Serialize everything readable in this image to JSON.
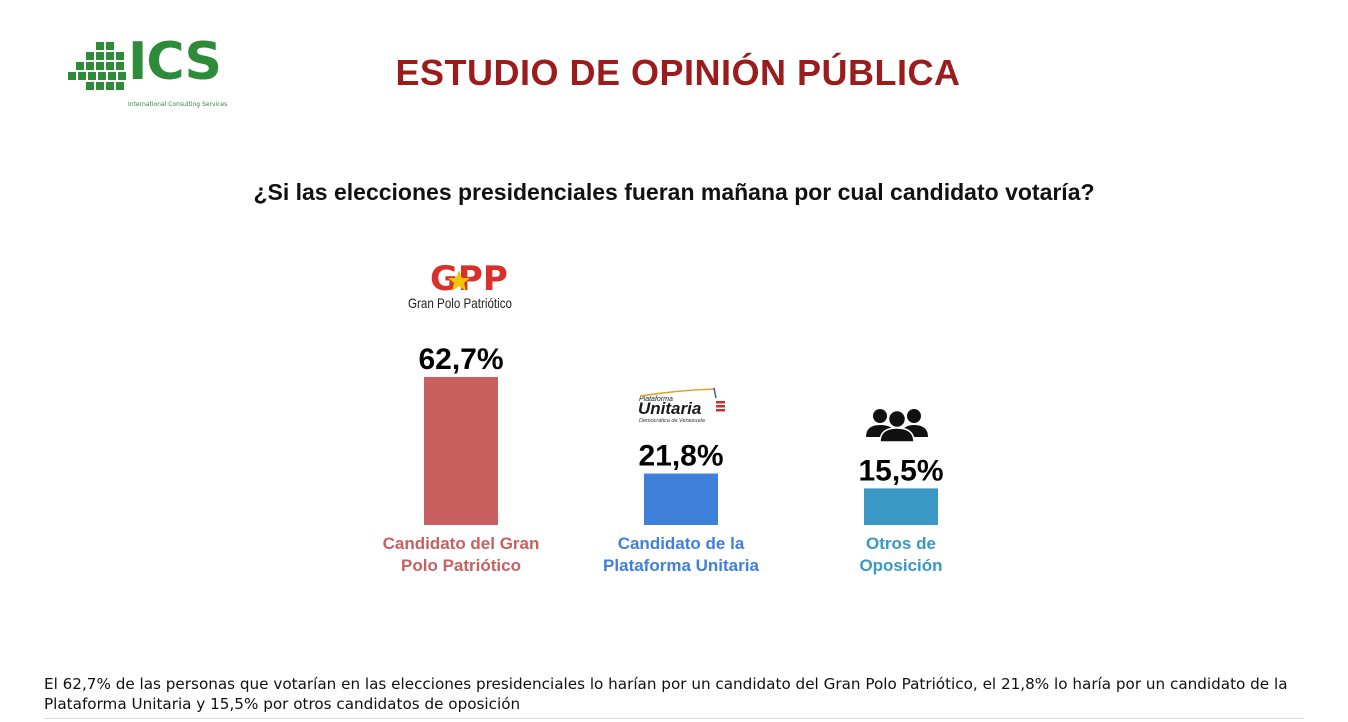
{
  "header": {
    "logo_text": "ICS",
    "logo_subtitle": "International Consulting Services",
    "title": "ESTUDIO DE OPINIÓN PÚBLICA"
  },
  "question": "¿Si las elecciones presidenciales fueran mañana por cual candidato votaría?",
  "party_logos": {
    "gpp": {
      "mark": "GPP",
      "name": "Gran Polo Patriótico"
    },
    "unitaria": {
      "top": "Plataforma",
      "main": "Unitaria",
      "bottom": "Democrática de Venezuela"
    }
  },
  "chart_data": {
    "type": "bar",
    "categories": [
      "Candidato del Gran Polo  Patriótico",
      "Candidato de la Plataforma  Unitaria",
      "Otros de Oposición"
    ],
    "category_lines": [
      [
        "Candidato del Gran",
        "Polo  Patriótico"
      ],
      [
        "Candidato de la",
        "Plataforma  Unitaria"
      ],
      [
        "Otros de",
        "Oposición"
      ]
    ],
    "values": [
      62.7,
      21.8,
      15.5
    ],
    "value_labels": [
      "62,7%",
      "21,8%",
      "15,5%"
    ],
    "colors": [
      "#c86060",
      "#3f80db",
      "#3a98c4"
    ],
    "label_colors": [
      "#c86060",
      "#3f80db",
      "#3a98c4"
    ],
    "icons": [
      "gpp-logo",
      "unitaria-logo",
      "people-group-icon"
    ],
    "ylim": [
      0,
      62.7
    ],
    "grid": false,
    "legend": "none"
  },
  "caption": "El 62,7% de las personas que votarían en las elecciones presidenciales lo harían por un candidato del Gran Polo Patriótico, el 21,8% lo haría por un candidato de la Plataforma Unitaria y 15,5% por otros candidatos de oposición"
}
